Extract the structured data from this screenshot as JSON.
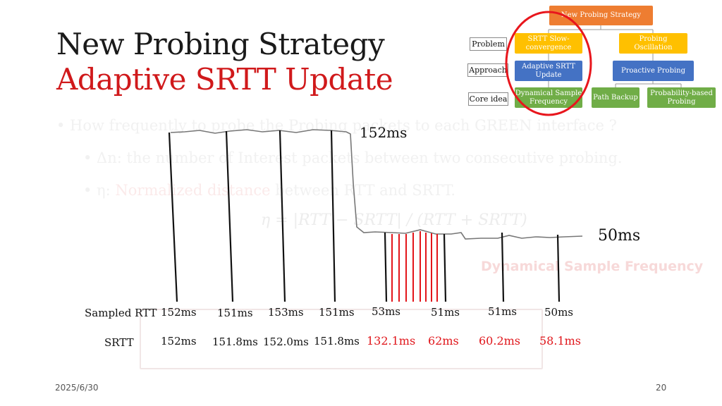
{
  "title": {
    "line1": "New Probing Strategy",
    "line2": "Adaptive SRTT Update"
  },
  "background_text": {
    "bullet1": "• How frequently to probe the Probing packets to each GREEN interface ?",
    "bullet2": "• Δn: the number of Interest packets between two consecutive probing.",
    "bullet3_prefix": "• η: ",
    "bullet3_red": "Normalized distance",
    "bullet3_rest": " between RTT and SRTT.",
    "formula": "η = |RTT − SRTT| / (RTT + SRTT)",
    "dsf": "Dynamical Sample Frequency"
  },
  "tree": {
    "root": "New Probing Strategy",
    "row_labels": [
      "Problem",
      "Approach",
      "Core idea"
    ],
    "problems": [
      "SRTT Slow-convergence",
      "Probing Oscillation"
    ],
    "approaches": [
      "Adaptive SRTT Update",
      "Proactive Probing"
    ],
    "core_ideas": [
      "Dynamical Sample Frequency",
      "Path Backup",
      "Probability-based Probing"
    ]
  },
  "plot": {
    "label_high": "152ms",
    "label_low": "50ms",
    "row_sampled_label": "Sampled RTT",
    "row_srtt_label": "SRTT",
    "sampled_rtt": [
      "152ms",
      "151ms",
      "153ms",
      "151ms",
      "53ms",
      "51ms",
      "51ms",
      "50ms"
    ],
    "srtt": [
      "152ms",
      "151.8ms",
      "152.0ms",
      "151.8ms",
      "132.1ms",
      "62ms",
      "60.2ms",
      "58.1ms"
    ]
  },
  "footer": {
    "date": "2025/6/30",
    "page": "20"
  },
  "colors": {
    "title_red": "#d0191b",
    "value_red": "#e0161b",
    "probe_red": "#e3151a",
    "circle": "#e8161d"
  }
}
